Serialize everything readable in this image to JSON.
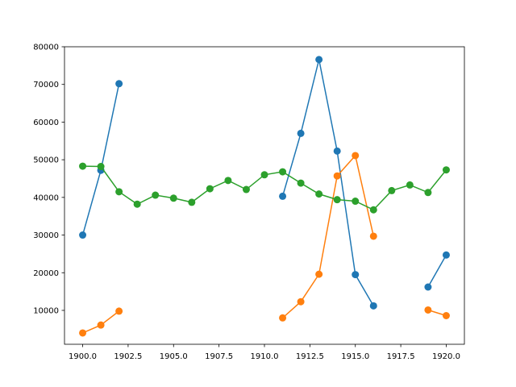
{
  "chart_data": {
    "type": "line",
    "title": "",
    "xlabel": "",
    "ylabel": "",
    "xlim": [
      1899.0,
      1921.0
    ],
    "ylim": [
      1000,
      80000
    ],
    "x_ticks": [
      1900.0,
      1902.5,
      1905.0,
      1907.5,
      1910.0,
      1912.5,
      1915.0,
      1917.5,
      1920.0
    ],
    "x_tick_labels": [
      "1900.0",
      "1902.5",
      "1905.0",
      "1907.5",
      "1910.0",
      "1912.5",
      "1915.0",
      "1917.5",
      "1920.0"
    ],
    "y_ticks": [
      10000,
      20000,
      30000,
      40000,
      50000,
      60000,
      70000,
      80000
    ],
    "y_tick_labels": [
      "10000",
      "20000",
      "30000",
      "40000",
      "50000",
      "60000",
      "70000",
      "80000"
    ],
    "grid": false,
    "legend": "none",
    "x": [
      1900,
      1901,
      1902,
      1903,
      1904,
      1905,
      1906,
      1907,
      1908,
      1909,
      1910,
      1911,
      1912,
      1913,
      1914,
      1915,
      1916,
      1917,
      1918,
      1919,
      1920
    ],
    "series": [
      {
        "color": "#1f77b4",
        "values": [
          30000,
          47200,
          70200,
          null,
          null,
          null,
          null,
          null,
          null,
          null,
          null,
          40300,
          57000,
          76600,
          52300,
          19500,
          11200,
          null,
          null,
          16200,
          24700
        ]
      },
      {
        "color": "#ff7f0e",
        "values": [
          4000,
          6100,
          9800,
          null,
          null,
          null,
          null,
          null,
          null,
          null,
          null,
          8000,
          12300,
          19600,
          45700,
          51100,
          29700,
          null,
          null,
          10100,
          8600
        ]
      },
      {
        "color": "#2ca02c",
        "values": [
          48300,
          48200,
          41500,
          38200,
          40600,
          39800,
          38700,
          42300,
          44500,
          42100,
          46000,
          46800,
          43800,
          40900,
          39400,
          39000,
          36700,
          41800,
          43300,
          41300,
          47300
        ]
      }
    ]
  }
}
